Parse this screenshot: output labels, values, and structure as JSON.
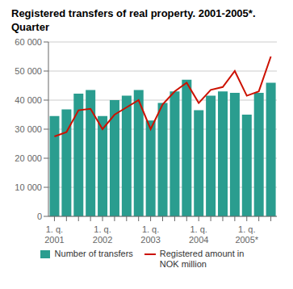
{
  "chart_data": {
    "type": "bar",
    "title": "Registered transfers of real property.  2001-2005*.",
    "subtitle": "Quarter",
    "categories": [
      "1. q.\n2001",
      null,
      null,
      null,
      "1. q.\n2002",
      null,
      null,
      null,
      "1. q.\n2003",
      null,
      null,
      null,
      "1. q.\n2004",
      null,
      null,
      null,
      "1. q.\n2005*",
      null,
      null
    ],
    "series": [
      {
        "name": "Number of transfers",
        "type": "bar",
        "color": "#2a9d8f",
        "values": [
          34500,
          36800,
          42200,
          43500,
          34500,
          40000,
          41500,
          43500,
          33000,
          39000,
          43000,
          47000,
          36500,
          41500,
          43000,
          42500,
          35000,
          42500,
          46000
        ]
      },
      {
        "name": "Registered amount in\nNOK million",
        "type": "line",
        "color": "#cc1100",
        "values": [
          27500,
          29000,
          36500,
          37000,
          30000,
          35000,
          37500,
          40000,
          30000,
          38500,
          43000,
          46000,
          39000,
          43500,
          44500,
          50000,
          41500,
          43000,
          55000
        ]
      }
    ],
    "ylim": [
      0,
      60000
    ],
    "yticks": [
      0,
      {
        "value": 10000,
        "label": "10 000"
      },
      {
        "value": 20000,
        "label": "20 000"
      },
      {
        "value": 30000,
        "label": "30 000"
      },
      {
        "value": 40000,
        "label": "40 000"
      },
      {
        "value": 50000,
        "label": "50 000"
      },
      {
        "value": 60000,
        "label": "60 000"
      }
    ],
    "grid": true,
    "legend": "bottom"
  }
}
